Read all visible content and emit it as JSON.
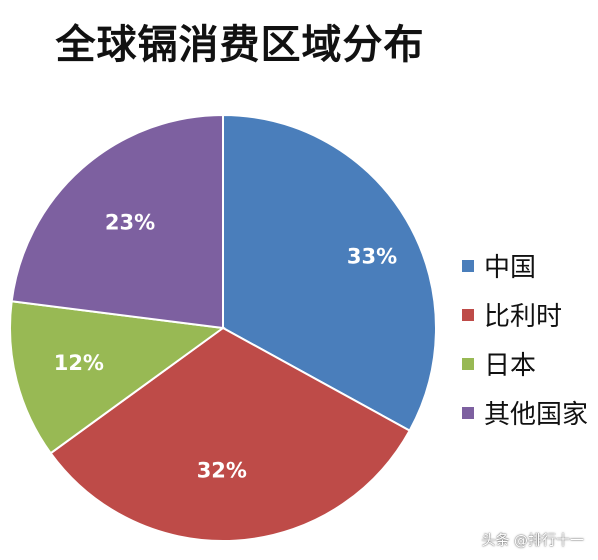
{
  "chart_data": {
    "type": "pie",
    "title": "全球镉消费区域分布",
    "categories": [
      "中国",
      "比利时",
      "日本",
      "其他国家"
    ],
    "values": [
      33,
      32,
      12,
      23
    ],
    "labels": [
      "33%",
      "32%",
      "12%",
      "23%"
    ],
    "colors": [
      "#4a7ebb",
      "#be4b48",
      "#98b954",
      "#7d60a0"
    ],
    "legend_position": "right"
  },
  "watermark": "头条 @排行十一"
}
